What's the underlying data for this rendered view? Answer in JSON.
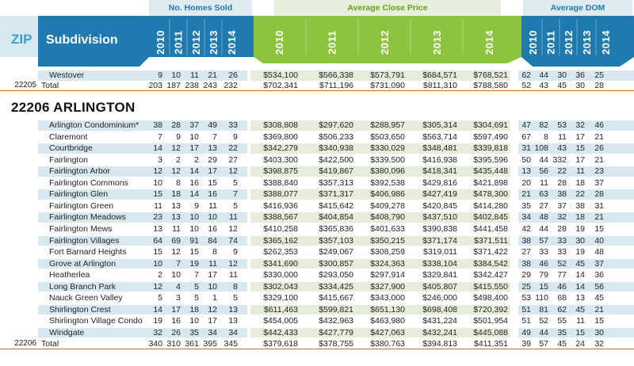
{
  "groups": {
    "homes_sold": "No. Homes Sold",
    "avg_close_price": "Average Close Price",
    "avg_dom": "Average DOM"
  },
  "header": {
    "zip": "ZIP",
    "subdivision": "Subdivision",
    "years_homes": [
      "2010",
      "2011",
      "2012",
      "2013",
      "2014"
    ],
    "years_price": [
      "2010",
      "2011",
      "2012",
      "2013",
      "2014"
    ],
    "years_dom": [
      "2010",
      "2011",
      "2012",
      "2013",
      "2014"
    ]
  },
  "colors": {
    "header_blue": "#1f7ab0",
    "header_green": "#8cc43d",
    "row_blue": "#d8e8f1",
    "row_green": "#e6eedb",
    "total_line": "#c9722a"
  },
  "top_rows": [
    {
      "zip": "",
      "name": "Westover",
      "indent": true,
      "shaded": true,
      "homes": [
        "9",
        "10",
        "11",
        "21",
        "26"
      ],
      "price": [
        "$534,100",
        "$566,338",
        "$573,791",
        "$684,571",
        "$768,521"
      ],
      "dom": [
        "62",
        "44",
        "30",
        "36",
        "25"
      ]
    },
    {
      "zip": "22205",
      "name": "Total",
      "indent": false,
      "shaded": false,
      "total": true,
      "homes": [
        "203",
        "187",
        "238",
        "243",
        "232"
      ],
      "price": [
        "$702,341",
        "$711,196",
        "$731,090",
        "$811,310",
        "$788,580"
      ],
      "dom": [
        "52",
        "43",
        "45",
        "30",
        "28"
      ]
    }
  ],
  "section_title": "22206 ARLINGTON",
  "rows": [
    {
      "zip": "",
      "name": "Arlington Condominium*",
      "homes": [
        "38",
        "28",
        "37",
        "49",
        "33"
      ],
      "price": [
        "$308,808",
        "$297,620",
        "$288,957",
        "$305,314",
        "$304,691"
      ],
      "dom": [
        "47",
        "82",
        "53",
        "32",
        "46"
      ]
    },
    {
      "zip": "",
      "name": "Claremont",
      "homes": [
        "7",
        "9",
        "10",
        "7",
        "9"
      ],
      "price": [
        "$369,800",
        "$506,233",
        "$503,650",
        "$563,714",
        "$597,490"
      ],
      "dom": [
        "67",
        "8",
        "11",
        "17",
        "21"
      ]
    },
    {
      "zip": "",
      "name": "Courtbridge",
      "homes": [
        "14",
        "12",
        "17",
        "13",
        "22"
      ],
      "price": [
        "$342,279",
        "$340,938",
        "$330,029",
        "$348,481",
        "$339,818"
      ],
      "dom": [
        "31",
        "108",
        "43",
        "15",
        "26"
      ]
    },
    {
      "zip": "",
      "name": "Fairlington",
      "homes": [
        "3",
        "2",
        "2",
        "29",
        "27"
      ],
      "price": [
        "$403,300",
        "$422,500",
        "$339,500",
        "$416,938",
        "$395,596"
      ],
      "dom": [
        "50",
        "44",
        "332",
        "17",
        "21"
      ]
    },
    {
      "zip": "",
      "name": "Fairlington Arbor",
      "homes": [
        "12",
        "12",
        "14",
        "17",
        "12"
      ],
      "price": [
        "$398,875",
        "$419,867",
        "$380,096",
        "$418,341",
        "$435,448"
      ],
      "dom": [
        "13",
        "56",
        "22",
        "11",
        "23"
      ]
    },
    {
      "zip": "",
      "name": "Fairlington Commons",
      "homes": [
        "10",
        "8",
        "16",
        "15",
        "5"
      ],
      "price": [
        "$388,840",
        "$357,313",
        "$392,538",
        "$429,816",
        "$421,898"
      ],
      "dom": [
        "20",
        "11",
        "28",
        "18",
        "37"
      ]
    },
    {
      "zip": "",
      "name": "Fairlington Glen",
      "homes": [
        "15",
        "18",
        "14",
        "16",
        "7"
      ],
      "price": [
        "$388,077",
        "$371,317",
        "$406,986",
        "$427,419",
        "$478,300"
      ],
      "dom": [
        "21",
        "63",
        "38",
        "22",
        "28"
      ]
    },
    {
      "zip": "",
      "name": "Fairlington Green",
      "homes": [
        "11",
        "13",
        "9",
        "11",
        "5"
      ],
      "price": [
        "$416,936",
        "$415,642",
        "$409,278",
        "$420,845",
        "$414,280"
      ],
      "dom": [
        "35",
        "27",
        "37",
        "38",
        "31"
      ]
    },
    {
      "zip": "",
      "name": "Fairlington Meadows",
      "homes": [
        "23",
        "13",
        "10",
        "10",
        "11"
      ],
      "price": [
        "$388,567",
        "$404,854",
        "$408,790",
        "$437,510",
        "$402,845"
      ],
      "dom": [
        "34",
        "48",
        "32",
        "18",
        "21"
      ]
    },
    {
      "zip": "",
      "name": "Fairlington Mews",
      "homes": [
        "13",
        "11",
        "10",
        "16",
        "12"
      ],
      "price": [
        "$410,258",
        "$365,836",
        "$401,633",
        "$390,838",
        "$441,458"
      ],
      "dom": [
        "42",
        "44",
        "28",
        "19",
        "15"
      ]
    },
    {
      "zip": "",
      "name": "Fairlington Villages",
      "homes": [
        "64",
        "69",
        "91",
        "84",
        "74"
      ],
      "price": [
        "$365,162",
        "$357,103",
        "$350,215",
        "$371,174",
        "$371,511"
      ],
      "dom": [
        "38",
        "57",
        "33",
        "30",
        "40"
      ]
    },
    {
      "zip": "",
      "name": "Fort Barnard Heights",
      "homes": [
        "15",
        "12",
        "15",
        "8",
        "9"
      ],
      "price": [
        "$262,353",
        "$249,067",
        "$308,259",
        "$319,011",
        "$371,422"
      ],
      "dom": [
        "27",
        "33",
        "33",
        "19",
        "48"
      ]
    },
    {
      "zip": "",
      "name": "Grove at Arlington",
      "homes": [
        "10",
        "7",
        "19",
        "11",
        "12"
      ],
      "price": [
        "$341,690",
        "$300,857",
        "$324,363",
        "$338,104",
        "$384,542"
      ],
      "dom": [
        "38",
        "46",
        "52",
        "45",
        "37"
      ]
    },
    {
      "zip": "",
      "name": "Heatherlea",
      "homes": [
        "2",
        "10",
        "7",
        "17",
        "11"
      ],
      "price": [
        "$330,000",
        "$293,050",
        "$297,914",
        "$329,841",
        "$342,427"
      ],
      "dom": [
        "29",
        "79",
        "77",
        "14",
        "36"
      ]
    },
    {
      "zip": "",
      "name": "Long Branch Park",
      "homes": [
        "12",
        "4",
        "5",
        "10",
        "8"
      ],
      "price": [
        "$302,043",
        "$334,425",
        "$327,900",
        "$405,807",
        "$415,550"
      ],
      "dom": [
        "25",
        "15",
        "46",
        "14",
        "56"
      ]
    },
    {
      "zip": "",
      "name": "Nauck Green Valley",
      "homes": [
        "5",
        "3",
        "5",
        "1",
        "5"
      ],
      "price": [
        "$329,100",
        "$415,667",
        "$343,000",
        "$246,000",
        "$498,400"
      ],
      "dom": [
        "53",
        "110",
        "68",
        "13",
        "45"
      ]
    },
    {
      "zip": "",
      "name": "Shirlington Crest",
      "homes": [
        "14",
        "17",
        "18",
        "12",
        "13"
      ],
      "price": [
        "$611,463",
        "$599,821",
        "$651,130",
        "$698,408",
        "$720,392"
      ],
      "dom": [
        "51",
        "81",
        "62",
        "45",
        "21"
      ]
    },
    {
      "zip": "",
      "name": "Shirlington Village Condo",
      "homes": [
        "19",
        "16",
        "10",
        "17",
        "13"
      ],
      "price": [
        "$454,005",
        "$432,963",
        "$463,980",
        "$431,224",
        "$501,954"
      ],
      "dom": [
        "51",
        "52",
        "55",
        "11",
        "15"
      ]
    },
    {
      "zip": "",
      "name": "Windgate",
      "homes": [
        "32",
        "26",
        "35",
        "34",
        "34"
      ],
      "price": [
        "$442,433",
        "$427,779",
        "$427,063",
        "$432,241",
        "$445,088"
      ],
      "dom": [
        "49",
        "44",
        "35",
        "15",
        "30"
      ]
    }
  ],
  "total_row": {
    "zip": "22206",
    "name": "Total",
    "homes": [
      "340",
      "310",
      "361",
      "395",
      "345"
    ],
    "price": [
      "$379,618",
      "$378,755",
      "$380,763",
      "$394,813",
      "$411,351"
    ],
    "dom": [
      "39",
      "57",
      "45",
      "24",
      "32"
    ]
  }
}
